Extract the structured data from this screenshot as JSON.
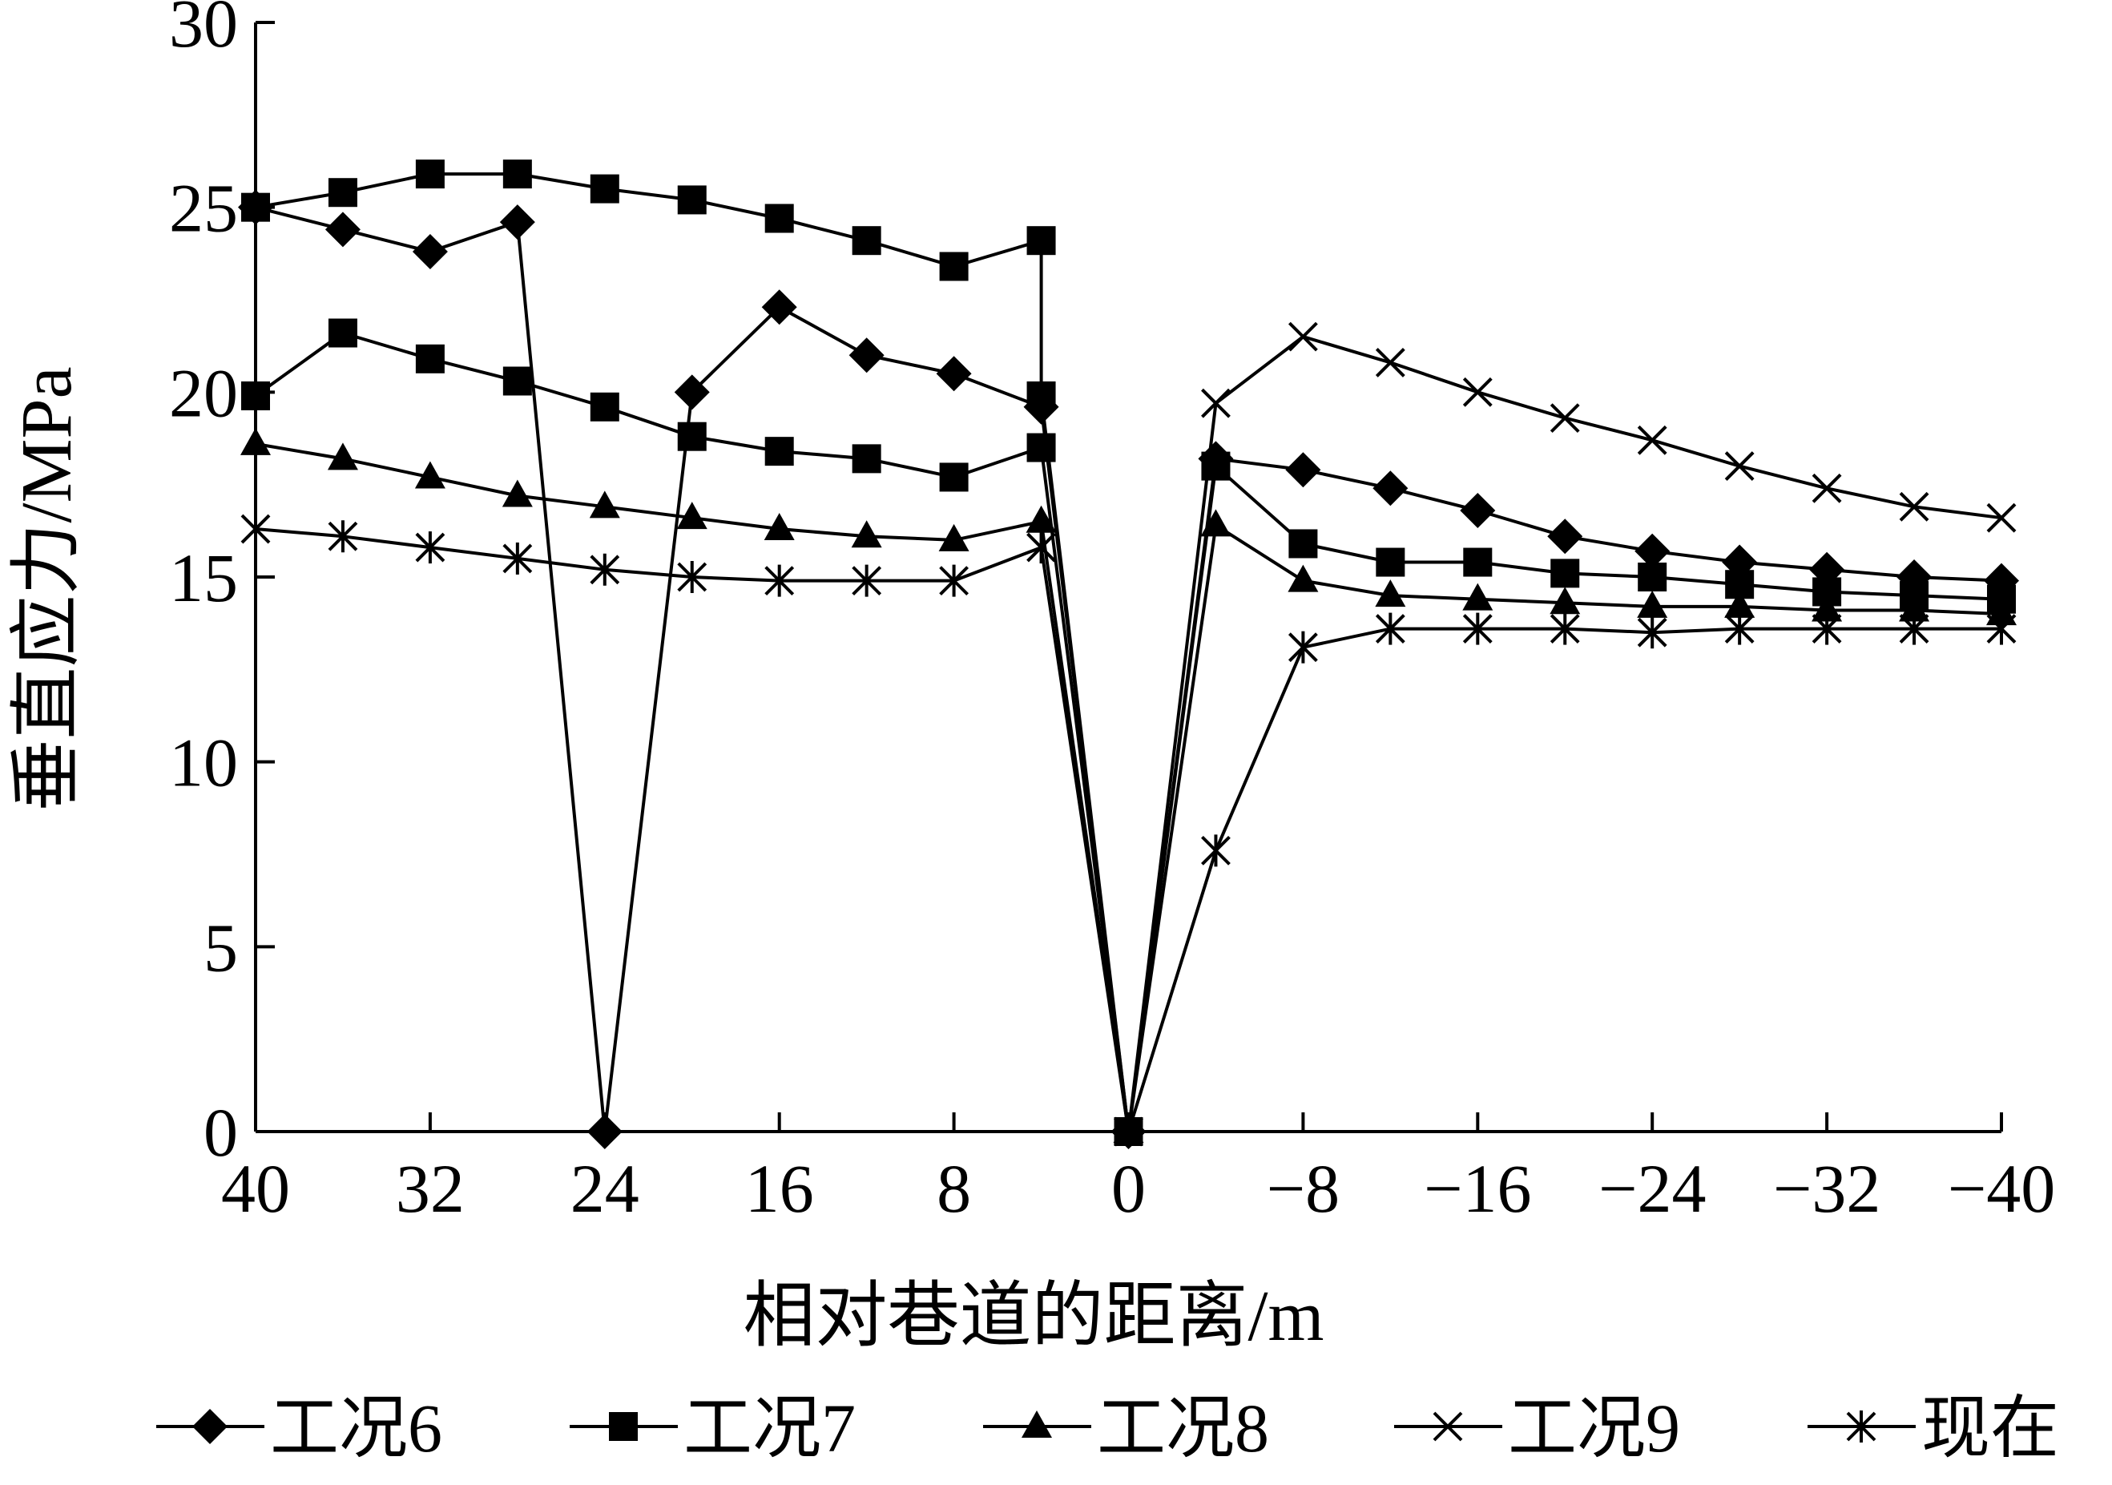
{
  "chart_data": {
    "type": "line",
    "xlabel": "相对巷道的距离/m",
    "ylabel": "垂直应力/MPa",
    "xlim": [
      40,
      -40
    ],
    "ylim": [
      0,
      30
    ],
    "x_ticks": [
      40,
      32,
      24,
      16,
      8,
      0,
      -8,
      -16,
      -24,
      -32,
      -40
    ],
    "x_tick_labels": [
      "40",
      "32",
      "24",
      "16",
      "8",
      "0",
      "−8",
      "−16",
      "−24",
      "−32",
      "−40"
    ],
    "y_ticks": [
      0,
      5,
      10,
      15,
      20,
      25,
      30
    ],
    "y_tick_labels": [
      "0",
      "5",
      "10",
      "15",
      "20",
      "25",
      "30"
    ],
    "legend_position": "bottom",
    "series": [
      {
        "name": "工况6",
        "marker": "diamond",
        "points": [
          [
            40,
            25.0
          ],
          [
            36,
            24.4
          ],
          [
            32,
            23.8
          ],
          [
            28,
            24.6
          ],
          [
            24,
            0
          ],
          [
            20,
            20.0
          ],
          [
            16,
            22.3
          ],
          [
            12,
            21.0
          ],
          [
            8,
            20.5
          ],
          [
            4,
            19.6
          ],
          [
            0,
            0
          ],
          [
            -4,
            18.2
          ],
          [
            -8,
            17.9
          ],
          [
            -12,
            17.4
          ],
          [
            -16,
            16.8
          ],
          [
            -20,
            16.1
          ],
          [
            -24,
            15.7
          ],
          [
            -28,
            15.4
          ],
          [
            -32,
            15.2
          ],
          [
            -36,
            15.0
          ],
          [
            -40,
            14.9
          ]
        ]
      },
      {
        "name": "工况7",
        "marker": "square",
        "points": [
          [
            40,
            25.0
          ],
          [
            36,
            25.4
          ],
          [
            32,
            25.9
          ],
          [
            28,
            25.9
          ],
          [
            24,
            25.5
          ],
          [
            20,
            25.2
          ],
          [
            16,
            24.7
          ],
          [
            12,
            24.1
          ],
          [
            8,
            23.4
          ],
          [
            4,
            24.1
          ],
          [
            4,
            19.9
          ],
          [
            0,
            0
          ]
        ],
        "points_lower": [
          [
            40,
            19.9
          ],
          [
            36,
            21.6
          ],
          [
            32,
            20.9
          ],
          [
            28,
            20.3
          ],
          [
            24,
            19.6
          ],
          [
            20,
            18.8
          ],
          [
            16,
            18.4
          ],
          [
            12,
            18.2
          ],
          [
            8,
            17.7
          ],
          [
            4,
            18.5
          ],
          [
            0,
            0
          ],
          [
            -4,
            18.0
          ],
          [
            -8,
            15.9
          ],
          [
            -12,
            15.4
          ],
          [
            -16,
            15.4
          ],
          [
            -20,
            15.1
          ],
          [
            -24,
            15.0
          ],
          [
            -28,
            14.8
          ],
          [
            -32,
            14.6
          ],
          [
            -36,
            14.5
          ],
          [
            -40,
            14.4
          ]
        ]
      },
      {
        "name": "工况8",
        "marker": "triangle",
        "points": [
          [
            40,
            18.6
          ],
          [
            36,
            18.2
          ],
          [
            32,
            17.7
          ],
          [
            28,
            17.2
          ],
          [
            24,
            16.9
          ],
          [
            20,
            16.6
          ],
          [
            16,
            16.3
          ],
          [
            12,
            16.1
          ],
          [
            8,
            16.0
          ],
          [
            4,
            16.5
          ],
          [
            0,
            0
          ],
          [
            -4,
            16.4
          ],
          [
            -8,
            14.9
          ],
          [
            -12,
            14.5
          ],
          [
            -16,
            14.4
          ],
          [
            -20,
            14.3
          ],
          [
            -24,
            14.2
          ],
          [
            -28,
            14.2
          ],
          [
            -32,
            14.1
          ],
          [
            -36,
            14.1
          ],
          [
            -40,
            14.0
          ]
        ]
      },
      {
        "name": "工况9",
        "marker": "x",
        "points": [
          [
            0,
            0
          ],
          [
            -4,
            19.7
          ],
          [
            -8,
            21.5
          ],
          [
            -12,
            20.8
          ],
          [
            -16,
            20.0
          ],
          [
            -20,
            19.3
          ],
          [
            -24,
            18.7
          ],
          [
            -28,
            18.0
          ],
          [
            -32,
            17.4
          ],
          [
            -36,
            16.9
          ],
          [
            -40,
            16.6
          ]
        ]
      },
      {
        "name": "现在",
        "marker": "asterisk",
        "points": [
          [
            40,
            16.3
          ],
          [
            36,
            16.1
          ],
          [
            32,
            15.8
          ],
          [
            28,
            15.5
          ],
          [
            24,
            15.2
          ],
          [
            20,
            15.0
          ],
          [
            16,
            14.9
          ],
          [
            12,
            14.9
          ],
          [
            8,
            14.9
          ],
          [
            4,
            15.8
          ],
          [
            0,
            0
          ],
          [
            -4,
            7.6
          ],
          [
            -8,
            13.1
          ],
          [
            -12,
            13.6
          ],
          [
            -16,
            13.6
          ],
          [
            -20,
            13.6
          ],
          [
            -24,
            13.5
          ],
          [
            -28,
            13.6
          ],
          [
            -32,
            13.6
          ],
          [
            -36,
            13.6
          ],
          [
            -40,
            13.6
          ]
        ]
      }
    ]
  }
}
